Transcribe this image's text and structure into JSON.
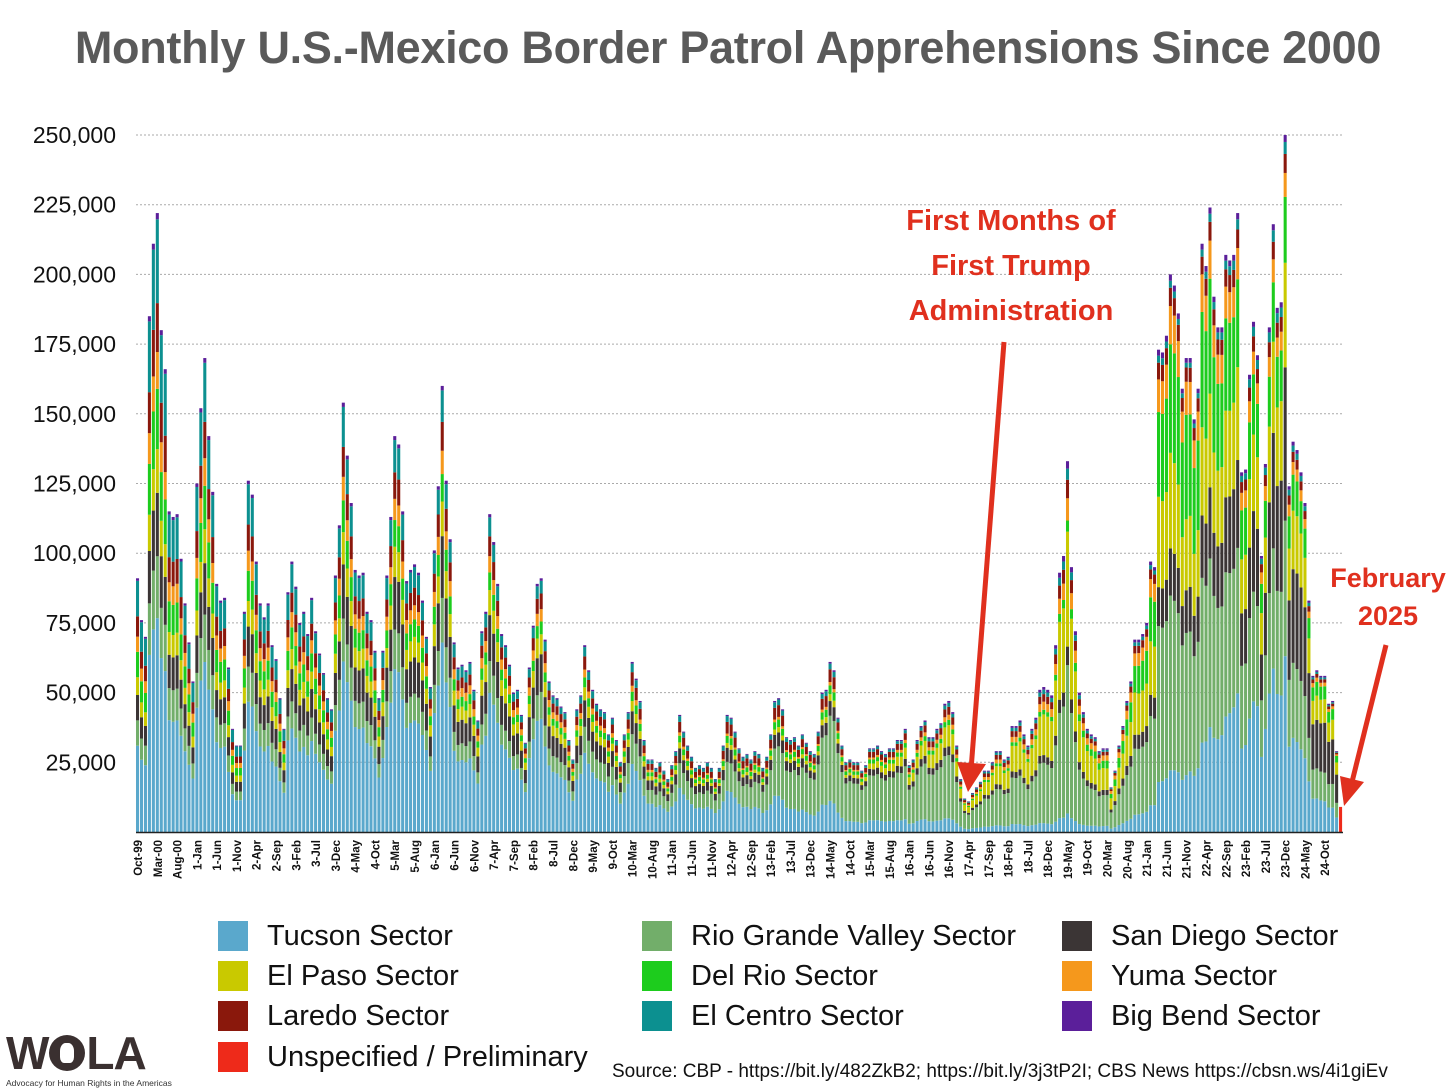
{
  "chart_data": {
    "type": "bar",
    "stacked": true,
    "title": "Monthly U.S.-Mexico Border Patrol Apprehensions Since 2000",
    "xlabel": "",
    "ylabel": "",
    "ylim": [
      0,
      250000
    ],
    "grid": true,
    "y_ticks": [
      25000,
      50000,
      75000,
      100000,
      125000,
      150000,
      175000,
      200000,
      225000,
      250000
    ],
    "y_tick_labels": [
      "25,000",
      "50,000",
      "75,000",
      "100,000",
      "125,000",
      "150,000",
      "175,000",
      "200,000",
      "225,000",
      "250,000"
    ],
    "first_month": "Oct-99",
    "last_month": "Feb-25",
    "x_tick_every": 5,
    "x_tick_labels": [
      "Oct-99",
      "Mar-00",
      "Aug-00",
      "1-Jan",
      "1-Jun",
      "1-Nov",
      "2-Apr",
      "2-Sep",
      "3-Feb",
      "3-Jul",
      "3-Dec",
      "4-May",
      "4-Oct",
      "5-Mar",
      "5-Aug",
      "6-Jan",
      "6-Jun",
      "6-Nov",
      "7-Apr",
      "7-Sep",
      "8-Feb",
      "8-Jul",
      "8-Dec",
      "9-May",
      "9-Oct",
      "10-Mar",
      "10-Aug",
      "11-Jan",
      "11-Jun",
      "11-Nov",
      "12-Apr",
      "12-Sep",
      "13-Feb",
      "13-Jul",
      "13-Dec",
      "14-May",
      "14-Oct",
      "15-Mar",
      "15-Aug",
      "16-Jan",
      "16-Jun",
      "16-Nov",
      "17-Apr",
      "17-Sep",
      "18-Feb",
      "18-Jul",
      "18-Dec",
      "19-May",
      "19-Oct",
      "20-Mar",
      "20-Aug",
      "21-Jan",
      "21-Jun",
      "21-Nov",
      "22-Apr",
      "22-Sep",
      "23-Feb",
      "23-Jul",
      "23-Dec",
      "24-May",
      "24-Oct"
    ],
    "monthly_totals_thousands": [
      91,
      76,
      70,
      185,
      211,
      222,
      180,
      166,
      115,
      113,
      114,
      98,
      82,
      68,
      54,
      125,
      152,
      170,
      142,
      122,
      89,
      83,
      84,
      59,
      37,
      31,
      31,
      79,
      126,
      121,
      97,
      82,
      77,
      82,
      67,
      62,
      48,
      37,
      86,
      97,
      88,
      75,
      79,
      71,
      84,
      72,
      64,
      57,
      48,
      44,
      92,
      110,
      154,
      135,
      118,
      94,
      92,
      93,
      79,
      76,
      65,
      48,
      65,
      92,
      113,
      142,
      139,
      115,
      90,
      94,
      96,
      93,
      83,
      70,
      52,
      101,
      124,
      160,
      126,
      105,
      68,
      59,
      60,
      58,
      61,
      51,
      40,
      72,
      79,
      114,
      104,
      89,
      71,
      67,
      60,
      50,
      51,
      42,
      32,
      59,
      74,
      89,
      91,
      69,
      54,
      49,
      48,
      45,
      43,
      33,
      26,
      44,
      49,
      67,
      58,
      51,
      46,
      44,
      43,
      35,
      41,
      33,
      25,
      35,
      43,
      61,
      55,
      47,
      33,
      26,
      26,
      23,
      25,
      22,
      19,
      24,
      29,
      42,
      36,
      31,
      27,
      23,
      24,
      23,
      25,
      23,
      19,
      23,
      31,
      42,
      41,
      36,
      30,
      27,
      28,
      26,
      29,
      28,
      23,
      27,
      35,
      47,
      48,
      44,
      34,
      33,
      34,
      31,
      35,
      32,
      29,
      28,
      36,
      50,
      51,
      61,
      58,
      41,
      31,
      25,
      26,
      25,
      25,
      22,
      24,
      30,
      30,
      31,
      29,
      28,
      30,
      30,
      33,
      33,
      37,
      24,
      26,
      33,
      38,
      40,
      34,
      34,
      37,
      39,
      46,
      47,
      43,
      31,
      19,
      12,
      11,
      14,
      16,
      18,
      22,
      22,
      25,
      29,
      29,
      26,
      27,
      38,
      38,
      40,
      35,
      31,
      37,
      41,
      51,
      52,
      51,
      49,
      67,
      93,
      99,
      133,
      95,
      72,
      50,
      43,
      37,
      35,
      34,
      29,
      30,
      30,
      16,
      22,
      31,
      38,
      47,
      54,
      69,
      69,
      71,
      75,
      97,
      95,
      173,
      172,
      178,
      200,
      196,
      186,
      159,
      170,
      170,
      148,
      159,
      211,
      203,
      224,
      192,
      181,
      181,
      207,
      205,
      207,
      222,
      129,
      130,
      164,
      183,
      171,
      99,
      132,
      181,
      218,
      188,
      190,
      250,
      124,
      140,
      137,
      129,
      118,
      83,
      56,
      58,
      56,
      56,
      46,
      47,
      29,
      9
    ],
    "unspecified_months": [
      "Feb-25"
    ],
    "stack_order": [
      "tucson",
      "rio_grande_valley",
      "san_diego",
      "el_paso",
      "del_rio",
      "yuma",
      "laredo",
      "el_centro",
      "big_bend"
    ],
    "sector_share_keyframes": [
      {
        "month_index": 0,
        "shares": [
          0.34,
          0.1,
          0.1,
          0.07,
          0.1,
          0.06,
          0.08,
          0.14,
          0.01
        ]
      },
      {
        "month_index": 100,
        "shares": [
          0.45,
          0.1,
          0.15,
          0.08,
          0.05,
          0.05,
          0.06,
          0.05,
          0.01
        ]
      },
      {
        "month_index": 150,
        "shares": [
          0.35,
          0.25,
          0.12,
          0.04,
          0.06,
          0.02,
          0.1,
          0.05,
          0.01
        ]
      },
      {
        "month_index": 180,
        "shares": [
          0.15,
          0.55,
          0.08,
          0.04,
          0.05,
          0.02,
          0.07,
          0.03,
          0.01
        ]
      },
      {
        "month_index": 235,
        "shares": [
          0.05,
          0.4,
          0.05,
          0.31,
          0.03,
          0.06,
          0.05,
          0.03,
          0.02
        ]
      },
      {
        "month_index": 265,
        "shares": [
          0.12,
          0.3,
          0.09,
          0.15,
          0.22,
          0.07,
          0.03,
          0.01,
          0.01
        ]
      },
      {
        "month_index": 285,
        "shares": [
          0.28,
          0.2,
          0.17,
          0.15,
          0.1,
          0.04,
          0.03,
          0.02,
          0.01
        ]
      },
      {
        "month_index": 303,
        "shares": [
          0.18,
          0.18,
          0.35,
          0.15,
          0.08,
          0.02,
          0.02,
          0.01,
          0.01
        ]
      }
    ],
    "legend": [
      {
        "key": "tucson",
        "label": "Tucson Sector",
        "color": "#5aa8cc"
      },
      {
        "key": "rio_grande_valley",
        "label": "Rio Grande Valley Sector",
        "color": "#72ae6a"
      },
      {
        "key": "san_diego",
        "label": "San Diego Sector",
        "color": "#3b3535"
      },
      {
        "key": "el_paso",
        "label": "El Paso Sector",
        "color": "#c9c900"
      },
      {
        "key": "del_rio",
        "label": "Del Rio Sector",
        "color": "#1dcc1d"
      },
      {
        "key": "yuma",
        "label": "Yuma Sector",
        "color": "#f5981c"
      },
      {
        "key": "laredo",
        "label": "Laredo Sector",
        "color": "#8a180c"
      },
      {
        "key": "el_centro",
        "label": "El Centro Sector",
        "color": "#0c9090"
      },
      {
        "key": "big_bend",
        "label": "Big Bend Sector",
        "color": "#5b1f9a"
      },
      {
        "key": "unspecified",
        "label": "Unspecified / Preliminary",
        "color": "#ee2a1a"
      }
    ],
    "legend_placement": "bottom",
    "annotations": [
      {
        "lines": [
          "First Months of",
          "First Trump",
          "Administration"
        ],
        "points_to_month": "Apr-17",
        "color": "#e0301e"
      },
      {
        "lines": [
          "February",
          "2025"
        ],
        "points_to_month": "Feb-25",
        "color": "#e0301e"
      }
    ]
  },
  "source": "Source: CBP - https://bit.ly/482ZkB2; https://bit.ly/3j3tP2I; CBS News https://cbsn.ws/4i1giEv",
  "logo": {
    "name": "WOLA",
    "tagline": "Advocacy for Human Rights in the Americas"
  }
}
